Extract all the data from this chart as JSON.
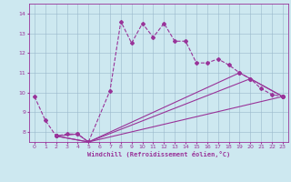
{
  "xlabel": "Windchill (Refroidissement éolien,°C)",
  "bg_color": "#cde8f0",
  "grid_color": "#9ab8cc",
  "line_color": "#993399",
  "xlim": [
    -0.5,
    23.5
  ],
  "ylim": [
    7.5,
    14.5
  ],
  "yticks": [
    8,
    9,
    10,
    11,
    12,
    13,
    14
  ],
  "xticks": [
    0,
    1,
    2,
    3,
    4,
    5,
    6,
    7,
    8,
    9,
    10,
    11,
    12,
    13,
    14,
    15,
    16,
    17,
    18,
    19,
    20,
    21,
    22,
    23
  ],
  "series": [
    {
      "x": [
        0,
        1,
        2,
        3,
        4,
        5,
        7,
        8,
        9,
        10,
        11,
        12,
        13,
        14,
        15,
        16,
        17,
        18,
        19,
        20,
        21,
        22,
        23
      ],
      "y": [
        9.8,
        8.6,
        7.8,
        7.9,
        7.9,
        7.5,
        10.1,
        13.6,
        12.5,
        13.5,
        12.8,
        13.5,
        12.6,
        12.6,
        11.5,
        11.5,
        11.7,
        11.4,
        11.0,
        10.7,
        10.2,
        9.9,
        9.8
      ],
      "style": "--",
      "marker": "D",
      "markersize": 2.0,
      "linewidth": 0.8
    },
    {
      "x": [
        2,
        5,
        23
      ],
      "y": [
        7.8,
        7.5,
        9.8
      ],
      "style": "-",
      "marker": "D",
      "markersize": 2.0,
      "linewidth": 0.8
    },
    {
      "x": [
        2,
        5,
        20,
        23
      ],
      "y": [
        7.8,
        7.5,
        10.7,
        9.8
      ],
      "style": "-",
      "marker": "D",
      "markersize": 2.0,
      "linewidth": 0.8
    },
    {
      "x": [
        2,
        4,
        5,
        19,
        23
      ],
      "y": [
        7.8,
        7.9,
        7.5,
        11.0,
        9.8
      ],
      "style": "-",
      "marker": "D",
      "markersize": 2.0,
      "linewidth": 0.8
    }
  ]
}
